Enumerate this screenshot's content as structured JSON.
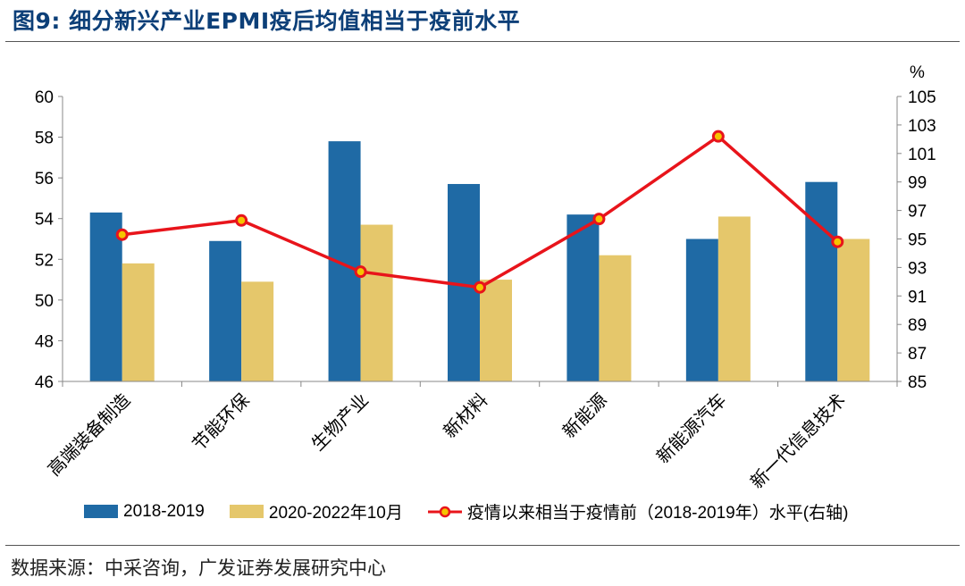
{
  "figure": {
    "title": "图9:  细分新兴产业EPMI疫后均值相当于疫前水平",
    "source": "数据来源：中采咨询，广发证券发展研究中心"
  },
  "colors": {
    "title": "#0c3f78",
    "bar1": "#1f6aa5",
    "bar2": "#e5c76b",
    "line": "#e8141b",
    "marker_fill": "#f5c400"
  },
  "chart_data": {
    "type": "bar",
    "categories": [
      "高端装备制造",
      "节能环保",
      "生物产业",
      "新材料",
      "新能源",
      "新能源汽车",
      "新一代信息技术"
    ],
    "series": [
      {
        "name": "2018-2019",
        "type": "bar",
        "axis": "left",
        "values": [
          54.3,
          52.9,
          57.8,
          55.7,
          54.2,
          53.0,
          55.8
        ]
      },
      {
        "name": "2020-2022年10月",
        "type": "bar",
        "axis": "left",
        "values": [
          51.8,
          50.9,
          53.7,
          51.0,
          52.2,
          54.1,
          53.0
        ]
      },
      {
        "name": "疫情以来相当于疫情前（2018-2019年）水平(右轴)",
        "type": "line",
        "axis": "right",
        "values": [
          95.3,
          96.3,
          92.7,
          91.6,
          96.4,
          102.2,
          94.8
        ]
      }
    ],
    "y_left": {
      "min": 46,
      "max": 60,
      "ticks": [
        "46",
        "48",
        "50",
        "52",
        "54",
        "56",
        "58",
        "60"
      ]
    },
    "y_right": {
      "min": 85,
      "max": 105,
      "unit": "%",
      "ticks": [
        "85",
        "87",
        "89",
        "91",
        "93",
        "95",
        "97",
        "99",
        "101",
        "103",
        "105"
      ]
    },
    "grid": false,
    "legend": "bottom"
  }
}
